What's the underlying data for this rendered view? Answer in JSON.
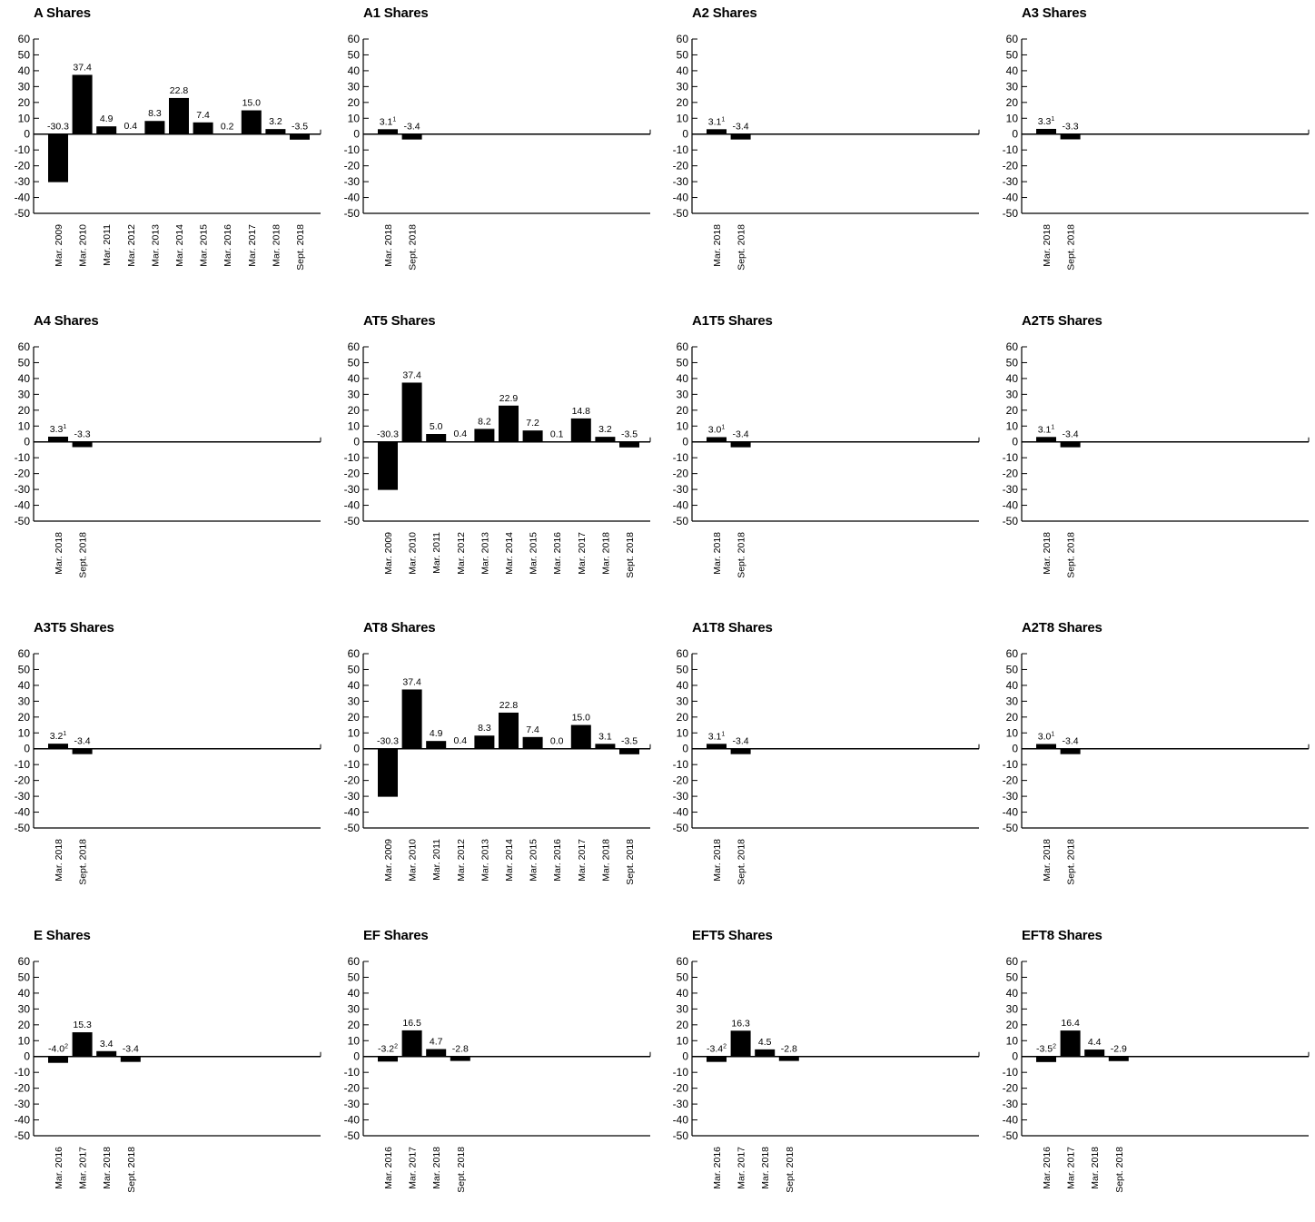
{
  "chart_data": [
    {
      "type": "bar",
      "title": "A Shares",
      "ylim": [
        -50,
        60
      ],
      "yticks": [
        "60",
        "50",
        "40",
        "30",
        "20",
        "10",
        "0",
        "-10",
        "-20",
        "-30",
        "-40",
        "-50"
      ],
      "categories": [
        "Mar. 2009",
        "Mar. 2010",
        "Mar. 2011",
        "Mar. 2012",
        "Mar. 2013",
        "Mar. 2014",
        "Mar. 2015",
        "Mar. 2016",
        "Mar. 2017",
        "Mar. 2018",
        "Sept. 2018"
      ],
      "values": [
        -30.3,
        37.4,
        4.9,
        0.4,
        8.3,
        22.8,
        7.4,
        0.2,
        15.0,
        3.2,
        -3.5
      ],
      "labels": [
        "-30.3",
        "37.4",
        "4.9",
        "0.4",
        "8.3",
        "22.8",
        "7.4",
        "0.2",
        "15.0",
        "3.2",
        "-3.5"
      ],
      "footnotes": [
        "",
        "",
        "",
        "",
        "",
        "",
        "",
        "",
        "",
        "",
        ""
      ]
    },
    {
      "type": "bar",
      "title": "A1 Shares",
      "ylim": [
        -50,
        60
      ],
      "yticks": [
        "60",
        "50",
        "40",
        "30",
        "20",
        "10",
        "0",
        "-10",
        "-20",
        "-30",
        "-40",
        "-50"
      ],
      "categories": [
        "Mar. 2018",
        "Sept. 2018"
      ],
      "values": [
        3.1,
        -3.4
      ],
      "labels": [
        "3.1",
        "-3.4"
      ],
      "footnotes": [
        "1",
        ""
      ]
    },
    {
      "type": "bar",
      "title": "A2 Shares",
      "ylim": [
        -50,
        60
      ],
      "yticks": [
        "60",
        "50",
        "40",
        "30",
        "20",
        "10",
        "0",
        "-10",
        "-20",
        "-30",
        "-40",
        "-50"
      ],
      "categories": [
        "Mar. 2018",
        "Sept. 2018"
      ],
      "values": [
        3.1,
        -3.4
      ],
      "labels": [
        "3.1",
        "-3.4"
      ],
      "footnotes": [
        "1",
        ""
      ]
    },
    {
      "type": "bar",
      "title": "A3 Shares",
      "ylim": [
        -50,
        60
      ],
      "yticks": [
        "60",
        "50",
        "40",
        "30",
        "20",
        "10",
        "0",
        "-10",
        "-20",
        "-30",
        "-40",
        "-50"
      ],
      "categories": [
        "Mar. 2018",
        "Sept. 2018"
      ],
      "values": [
        3.3,
        -3.3
      ],
      "labels": [
        "3.3",
        "-3.3"
      ],
      "footnotes": [
        "1",
        ""
      ]
    },
    {
      "type": "bar",
      "title": "A4 Shares",
      "ylim": [
        -50,
        60
      ],
      "yticks": [
        "60",
        "50",
        "40",
        "30",
        "20",
        "10",
        "0",
        "-10",
        "-20",
        "-30",
        "-40",
        "-50"
      ],
      "categories": [
        "Mar. 2018",
        "Sept. 2018"
      ],
      "values": [
        3.3,
        -3.3
      ],
      "labels": [
        "3.3",
        "-3.3"
      ],
      "footnotes": [
        "1",
        ""
      ]
    },
    {
      "type": "bar",
      "title": "AT5 Shares",
      "ylim": [
        -50,
        60
      ],
      "yticks": [
        "60",
        "50",
        "40",
        "30",
        "20",
        "10",
        "0",
        "-10",
        "-20",
        "-30",
        "-40",
        "-50"
      ],
      "categories": [
        "Mar. 2009",
        "Mar. 2010",
        "Mar. 2011",
        "Mar. 2012",
        "Mar. 2013",
        "Mar. 2014",
        "Mar. 2015",
        "Mar. 2016",
        "Mar. 2017",
        "Mar. 2018",
        "Sept. 2018"
      ],
      "values": [
        -30.3,
        37.4,
        5.0,
        0.4,
        8.2,
        22.9,
        7.2,
        0.1,
        14.8,
        3.2,
        -3.5
      ],
      "labels": [
        "-30.3",
        "37.4",
        "5.0",
        "0.4",
        "8.2",
        "22.9",
        "7.2",
        "0.1",
        "14.8",
        "3.2",
        "-3.5"
      ],
      "footnotes": [
        "",
        "",
        "",
        "",
        "",
        "",
        "",
        "",
        "",
        "",
        ""
      ]
    },
    {
      "type": "bar",
      "title": "A1T5 Shares",
      "ylim": [
        -50,
        60
      ],
      "yticks": [
        "60",
        "50",
        "40",
        "30",
        "20",
        "10",
        "0",
        "-10",
        "-20",
        "-30",
        "-40",
        "-50"
      ],
      "categories": [
        "Mar. 2018",
        "Sept. 2018"
      ],
      "values": [
        3.0,
        -3.4
      ],
      "labels": [
        "3.0",
        "-3.4"
      ],
      "footnotes": [
        "1",
        ""
      ]
    },
    {
      "type": "bar",
      "title": "A2T5 Shares",
      "ylim": [
        -50,
        60
      ],
      "yticks": [
        "60",
        "50",
        "40",
        "30",
        "20",
        "10",
        "0",
        "-10",
        "-20",
        "-30",
        "-40",
        "-50"
      ],
      "categories": [
        "Mar. 2018",
        "Sept. 2018"
      ],
      "values": [
        3.1,
        -3.4
      ],
      "labels": [
        "3.1",
        "-3.4"
      ],
      "footnotes": [
        "1",
        ""
      ]
    },
    {
      "type": "bar",
      "title": "A3T5 Shares",
      "ylim": [
        -50,
        60
      ],
      "yticks": [
        "60",
        "50",
        "40",
        "30",
        "20",
        "10",
        "0",
        "-10",
        "-20",
        "-30",
        "-40",
        "-50"
      ],
      "categories": [
        "Mar. 2018",
        "Sept. 2018"
      ],
      "values": [
        3.2,
        -3.4
      ],
      "labels": [
        "3.2",
        "-3.4"
      ],
      "footnotes": [
        "1",
        ""
      ]
    },
    {
      "type": "bar",
      "title": "AT8 Shares",
      "ylim": [
        -50,
        60
      ],
      "yticks": [
        "60",
        "50",
        "40",
        "30",
        "20",
        "10",
        "0",
        "-10",
        "-20",
        "-30",
        "-40",
        "-50"
      ],
      "categories": [
        "Mar. 2009",
        "Mar. 2010",
        "Mar. 2011",
        "Mar. 2012",
        "Mar. 2013",
        "Mar. 2014",
        "Mar. 2015",
        "Mar. 2016",
        "Mar. 2017",
        "Mar. 2018",
        "Sept. 2018"
      ],
      "values": [
        -30.3,
        37.4,
        4.9,
        0.4,
        8.3,
        22.8,
        7.4,
        0.0,
        15.0,
        3.1,
        -3.5
      ],
      "labels": [
        "-30.3",
        "37.4",
        "4.9",
        "0.4",
        "8.3",
        "22.8",
        "7.4",
        "0.0",
        "15.0",
        "3.1",
        "-3.5"
      ],
      "footnotes": [
        "",
        "",
        "",
        "",
        "",
        "",
        "",
        "",
        "",
        "",
        ""
      ]
    },
    {
      "type": "bar",
      "title": "A1T8 Shares",
      "ylim": [
        -50,
        60
      ],
      "yticks": [
        "60",
        "50",
        "40",
        "30",
        "20",
        "10",
        "0",
        "-10",
        "-20",
        "-30",
        "-40",
        "-50"
      ],
      "categories": [
        "Mar. 2018",
        "Sept. 2018"
      ],
      "values": [
        3.1,
        -3.4
      ],
      "labels": [
        "3.1",
        "-3.4"
      ],
      "footnotes": [
        "1",
        ""
      ]
    },
    {
      "type": "bar",
      "title": "A2T8 Shares",
      "ylim": [
        -50,
        60
      ],
      "yticks": [
        "60",
        "50",
        "40",
        "30",
        "20",
        "10",
        "0",
        "-10",
        "-20",
        "-30",
        "-40",
        "-50"
      ],
      "categories": [
        "Mar. 2018",
        "Sept. 2018"
      ],
      "values": [
        3.0,
        -3.4
      ],
      "labels": [
        "3.0",
        "-3.4"
      ],
      "footnotes": [
        "1",
        ""
      ]
    },
    {
      "type": "bar",
      "title": "E Shares",
      "ylim": [
        -50,
        60
      ],
      "yticks": [
        "60",
        "50",
        "40",
        "30",
        "20",
        "10",
        "0",
        "-10",
        "-20",
        "-30",
        "-40",
        "-50"
      ],
      "categories": [
        "Mar. 2016",
        "Mar. 2017",
        "Mar. 2018",
        "Sept. 2018"
      ],
      "values": [
        -4.0,
        15.3,
        3.4,
        -3.4
      ],
      "labels": [
        "-4.0",
        "15.3",
        "3.4",
        "-3.4"
      ],
      "footnotes": [
        "2",
        "",
        "",
        ""
      ]
    },
    {
      "type": "bar",
      "title": "EF Shares",
      "ylim": [
        -50,
        60
      ],
      "yticks": [
        "60",
        "50",
        "40",
        "30",
        "20",
        "10",
        "0",
        "-10",
        "-20",
        "-30",
        "-40",
        "-50"
      ],
      "categories": [
        "Mar. 2016",
        "Mar. 2017",
        "Mar. 2018",
        "Sept. 2018"
      ],
      "values": [
        -3.2,
        16.5,
        4.7,
        -2.8
      ],
      "labels": [
        "-3.2",
        "16.5",
        "4.7",
        "-2.8"
      ],
      "footnotes": [
        "2",
        "",
        "",
        ""
      ]
    },
    {
      "type": "bar",
      "title": "EFT5 Shares",
      "ylim": [
        -50,
        60
      ],
      "yticks": [
        "60",
        "50",
        "40",
        "30",
        "20",
        "10",
        "0",
        "-10",
        "-20",
        "-30",
        "-40",
        "-50"
      ],
      "categories": [
        "Mar. 2016",
        "Mar. 2017",
        "Mar. 2018",
        "Sept. 2018"
      ],
      "values": [
        -3.4,
        16.3,
        4.5,
        -2.8
      ],
      "labels": [
        "-3.4",
        "16.3",
        "4.5",
        "-2.8"
      ],
      "footnotes": [
        "2",
        "",
        "",
        ""
      ]
    },
    {
      "type": "bar",
      "title": "EFT8 Shares",
      "ylim": [
        -50,
        60
      ],
      "yticks": [
        "60",
        "50",
        "40",
        "30",
        "20",
        "10",
        "0",
        "-10",
        "-20",
        "-30",
        "-40",
        "-50"
      ],
      "categories": [
        "Mar. 2016",
        "Mar. 2017",
        "Mar. 2018",
        "Sept. 2018"
      ],
      "values": [
        -3.5,
        16.4,
        4.4,
        -2.9
      ],
      "labels": [
        "-3.5",
        "16.4",
        "4.4",
        "-2.9"
      ],
      "footnotes": [
        "2",
        "",
        "",
        ""
      ]
    }
  ]
}
